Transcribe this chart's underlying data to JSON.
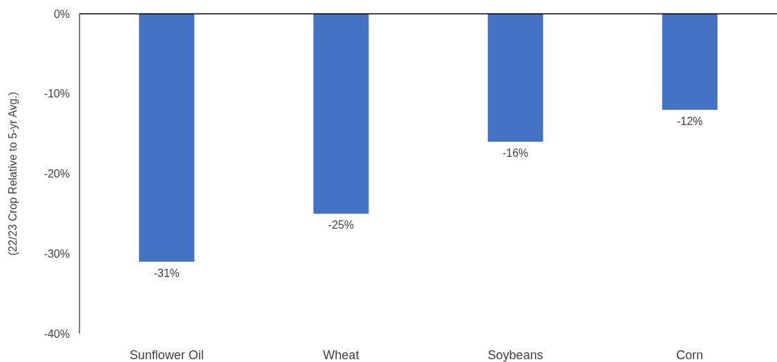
{
  "chart_data": {
    "type": "bar",
    "ylabel": "(22/23 Crop Relative to 5-yr Avg.)",
    "categories": [
      "Sunflower Oil",
      "Wheat",
      "Soybeans",
      "Corn"
    ],
    "values": [
      -31,
      -25,
      -16,
      -12
    ],
    "value_labels": [
      "-31%",
      "-25%",
      "-16%",
      "-12%"
    ],
    "color": "#4472c4",
    "ylim": [
      -40,
      0
    ],
    "yticks": [
      {
        "value": -40,
        "label": "-40%"
      },
      {
        "value": -30,
        "label": "-30%"
      },
      {
        "value": -20,
        "label": "-20%"
      },
      {
        "value": -10,
        "label": "-10%"
      },
      {
        "value": 0,
        "label": "0%"
      }
    ],
    "grid": false
  }
}
